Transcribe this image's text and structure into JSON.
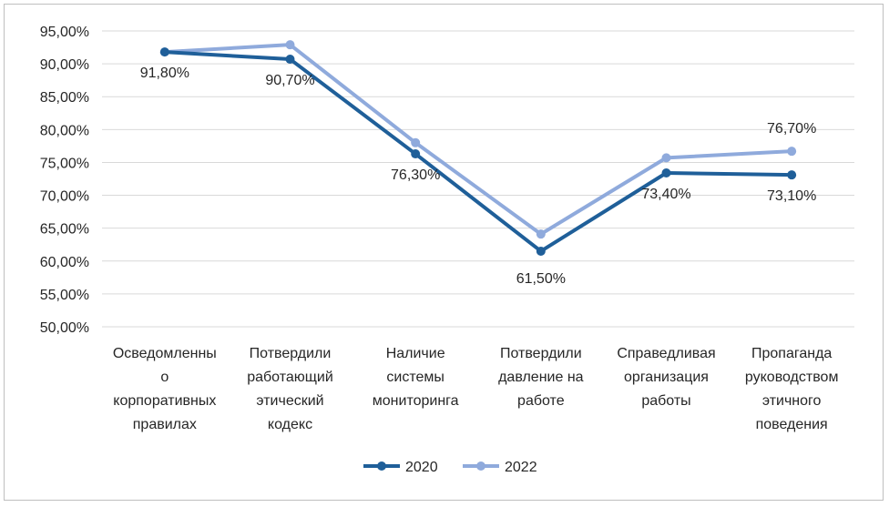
{
  "chart_data": {
    "type": "line",
    "categories": [
      [
        "Осведомленны",
        "о",
        "корпоративных",
        "правилах"
      ],
      [
        "Потвердили",
        "работающий",
        "этический",
        "кодекс"
      ],
      [
        "Наличие",
        "системы",
        "мониторинга"
      ],
      [
        "Потвердили",
        "давление на",
        "работе"
      ],
      [
        "Справедливая",
        "организация",
        "работы"
      ],
      [
        "Пропаганда",
        "руководством",
        "этичного",
        "поведения"
      ]
    ],
    "series": [
      {
        "name": "2020",
        "color": "#1f5f99",
        "values": [
          91.8,
          90.7,
          76.3,
          61.5,
          73.4,
          73.1
        ],
        "labels": [
          "91,80%",
          "90,70%",
          "76,30%",
          "61,50%",
          "73,40%",
          "73,10%"
        ]
      },
      {
        "name": "2022",
        "color": "#8faadc",
        "values": [
          91.8,
          92.9,
          78.0,
          64.1,
          75.7,
          76.7
        ],
        "labels": [
          "",
          "",
          "",
          "",
          "",
          "76,70%"
        ]
      }
    ],
    "ylim": [
      50,
      95
    ],
    "yticks": [
      "50,00%",
      "55,00%",
      "60,00%",
      "65,00%",
      "70,00%",
      "75,00%",
      "80,00%",
      "85,00%",
      "90,00%",
      "95,00%"
    ],
    "grid": true,
    "legend": "bottom"
  }
}
